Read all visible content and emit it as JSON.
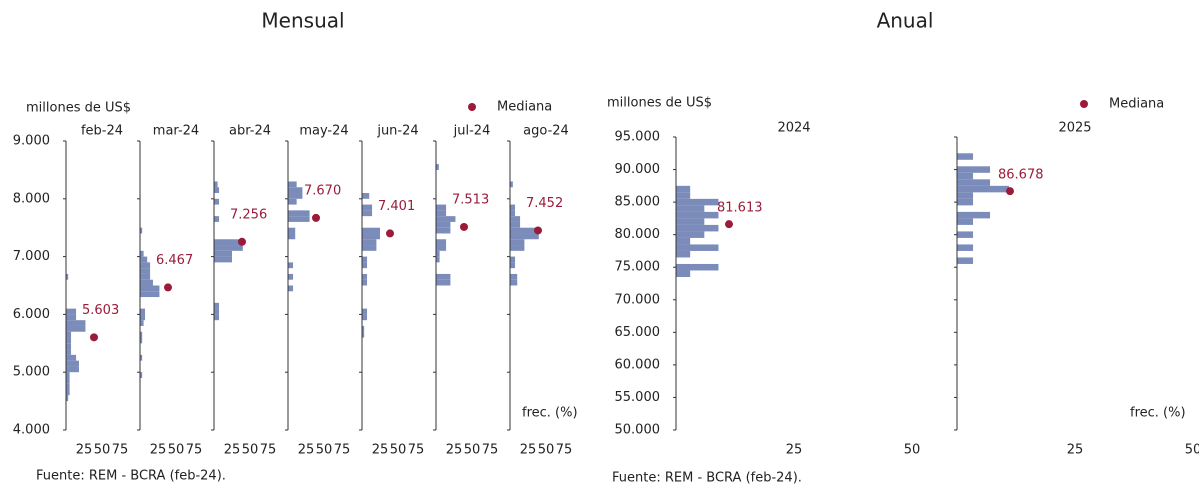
{
  "chart_data": [
    {
      "type": "bar",
      "title": "Mensual",
      "y_label": "millones de US$",
      "x_label": "frec. (%)",
      "legend": "Mediana",
      "source": "Fuente: REM - BCRA (feb-24).",
      "color": "#7b8cba",
      "median_color": "#9b1b3a",
      "ylim": [
        4000,
        9000
      ],
      "yticks": [
        {
          "value": 4000,
          "label": "4.000"
        },
        {
          "value": 5000,
          "label": "5.000"
        },
        {
          "value": 6000,
          "label": "6.000"
        },
        {
          "value": 7000,
          "label": "7.000"
        },
        {
          "value": 8000,
          "label": "8.000"
        },
        {
          "value": 9000,
          "label": "9.000"
        }
      ],
      "xlim": [
        0,
        100
      ],
      "xticks": [
        25,
        50,
        75
      ],
      "panels": [
        {
          "name": "feb-24",
          "median": 5603,
          "median_label": "5.603",
          "y": [
            6650,
            6050,
            5950,
            5850,
            5750,
            5650,
            5550,
            5450,
            5350,
            5250,
            5150,
            5050,
            4950,
            4850,
            4750,
            4650,
            4550
          ],
          "values": [
            3,
            14,
            14,
            27,
            27,
            7,
            7,
            7,
            7,
            14,
            18,
            18,
            5,
            5,
            5,
            5,
            3
          ]
        },
        {
          "name": "mar-24",
          "median": 6467,
          "median_label": "6.467",
          "y": [
            7450,
            7050,
            6950,
            6850,
            6750,
            6650,
            6550,
            6450,
            6350,
            6050,
            5950,
            5850,
            5650,
            5550,
            5250,
            4950
          ],
          "values": [
            3,
            5,
            10,
            14,
            14,
            14,
            18,
            27,
            27,
            7,
            7,
            5,
            3,
            3,
            3,
            3
          ]
        },
        {
          "name": "abr-24",
          "median": 7256,
          "median_label": "7.256",
          "y": [
            8250,
            8150,
            7950,
            7650,
            7250,
            7150,
            7050,
            6950,
            6150,
            6050,
            5950
          ],
          "values": [
            5,
            7,
            7,
            7,
            40,
            40,
            25,
            25,
            7,
            7,
            7
          ]
        },
        {
          "name": "may-24",
          "median": 7670,
          "median_label": "7.670",
          "y": [
            8250,
            8150,
            8050,
            7950,
            7750,
            7650,
            7450,
            7350,
            6850,
            6650,
            6450
          ],
          "values": [
            12,
            20,
            20,
            12,
            30,
            30,
            10,
            10,
            7,
            7,
            7
          ]
        },
        {
          "name": "jun-24",
          "median": 7401,
          "median_label": "7.401",
          "y": [
            8050,
            7850,
            7750,
            7450,
            7350,
            7250,
            7150,
            6950,
            6850,
            6650,
            6550,
            6050,
            5950,
            5750,
            5650
          ],
          "values": [
            10,
            14,
            14,
            25,
            25,
            20,
            20,
            7,
            7,
            7,
            7,
            7,
            7,
            3,
            3
          ]
        },
        {
          "name": "jul-24",
          "median": 7513,
          "median_label": "7.513",
          "y": [
            8550,
            7850,
            7750,
            7650,
            7550,
            7450,
            7250,
            7150,
            7050,
            6950,
            6650,
            6550
          ],
          "values": [
            4,
            14,
            14,
            27,
            20,
            20,
            14,
            14,
            5,
            5,
            20,
            20
          ]
        },
        {
          "name": "ago-24",
          "median": 7452,
          "median_label": "7.452",
          "y": [
            8250,
            7850,
            7750,
            7650,
            7550,
            7450,
            7350,
            7250,
            7150,
            6950,
            6850,
            6650,
            6550
          ],
          "values": [
            4,
            7,
            7,
            14,
            14,
            40,
            40,
            20,
            20,
            7,
            7,
            10,
            10
          ]
        }
      ]
    },
    {
      "type": "bar",
      "title": "Anual",
      "y_label": "millones de US$",
      "x_label": "frec. (%)",
      "legend": "Mediana",
      "source": "Fuente: REM - BCRA (feb-24).",
      "color": "#7b8cba",
      "median_color": "#9b1b3a",
      "ylim": [
        50000,
        95000
      ],
      "yticks": [
        {
          "value": 50000,
          "label": "50.000"
        },
        {
          "value": 55000,
          "label": "55.000"
        },
        {
          "value": 60000,
          "label": "60.000"
        },
        {
          "value": 65000,
          "label": "65.000"
        },
        {
          "value": 70000,
          "label": "70.000"
        },
        {
          "value": 75000,
          "label": "75.000"
        },
        {
          "value": 80000,
          "label": "80.000"
        },
        {
          "value": 85000,
          "label": "85.000"
        },
        {
          "value": 90000,
          "label": "90.000"
        },
        {
          "value": 95000,
          "label": "95.000"
        }
      ],
      "xlim": [
        0,
        50
      ],
      "xticks": [
        25,
        50
      ],
      "panels": [
        {
          "name": "2024",
          "median": 81613,
          "median_label": "81.613",
          "y": [
            87000,
            86000,
            85000,
            84000,
            83000,
            82000,
            81000,
            80000,
            79000,
            78000,
            77000,
            75000,
            74000
          ],
          "values": [
            3,
            3,
            9,
            6,
            9,
            6,
            9,
            6,
            3,
            9,
            3,
            9,
            3
          ]
        },
        {
          "name": "2025",
          "median": 86678,
          "median_label": "86.678",
          "y": [
            92000,
            90000,
            89000,
            88000,
            87000,
            86000,
            85000,
            83000,
            82000,
            80000,
            78000,
            76000
          ],
          "values": [
            3.4,
            7,
            3.4,
            7,
            11,
            3.4,
            3.4,
            7,
            3.4,
            3.4,
            3.4,
            3.4
          ]
        }
      ]
    }
  ]
}
